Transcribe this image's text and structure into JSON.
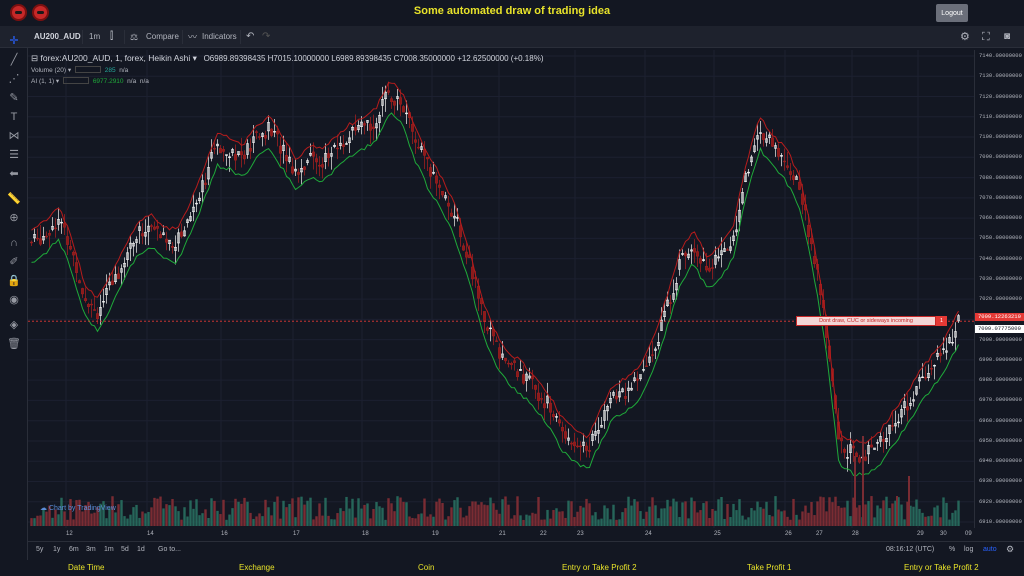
{
  "title_bar": {
    "title": "Some automated draw of trading idea",
    "logout_label": "Logout",
    "logo_icons": [
      "robot-icon",
      "robot-icon"
    ]
  },
  "toolbar": {
    "symbol": "AU200_AUD",
    "interval": "1m",
    "compare_label": "Compare",
    "indicators_label": "Indicators"
  },
  "legend": {
    "symbol_text": "forex:AU200_AUD, 1, forex, Heikin Ashi",
    "open": "O6989.89398435",
    "high": "H7015.10000000",
    "low": "L6989.89398435",
    "close": "C7008.35000000",
    "change": "+12.62500000 (+0.18%)",
    "volume_label": "Volume (20)",
    "volume_value": "285",
    "volume_ma": "n/a",
    "ai_label": "AI (1, 1)",
    "ai_value1": "6977.2910",
    "ai_value2": "n/a",
    "ai_value3": "n/a"
  },
  "watermark": "Chart by TradingView",
  "annotation": {
    "text": "Dont draw, CUC or sideways incoming",
    "badge": "1"
  },
  "price_axis": {
    "ticks": [
      "7140.00000000",
      "7130.00000000",
      "7120.00000000",
      "7110.00000000",
      "7100.00000000",
      "7090.00000000",
      "7080.00000000",
      "7070.00000000",
      "7060.00000000",
      "7050.00000000",
      "7040.00000000",
      "7030.00000000",
      "7020.00000000",
      "7010.00000000",
      "7000.00000000",
      "6990.00000000",
      "6980.00000000",
      "6970.00000000",
      "6960.00000000",
      "6950.00000000",
      "6940.00000000",
      "6930.00000000",
      "6920.00000000",
      "6910.00000000"
    ],
    "line_price": "7009.12263210",
    "last_price": "7009.07775000"
  },
  "time_axis": {
    "ticks": [
      "12",
      "14",
      "16",
      "17",
      "18",
      "19",
      "21",
      "22",
      "23",
      "24",
      "25",
      "26",
      "27",
      "28",
      "29",
      "30",
      "09"
    ]
  },
  "range_bar": {
    "ranges": [
      "5y",
      "1y",
      "6m",
      "3m",
      "1m",
      "5d",
      "1d"
    ],
    "goto_label": "Go to...",
    "clock": "08:16:12 (UTC)",
    "percent_label": "%",
    "log_label": "log",
    "auto_label": "auto"
  },
  "footer": {
    "labels": [
      "Date Time",
      "Exchange",
      "Coin",
      "Entry or Take Profit 2",
      "Take Profit 1",
      "Entry or Take Profit 2"
    ]
  },
  "colors": {
    "background": "#131722",
    "up_candle": "#ffffff",
    "down_candle": "#8b1a1a",
    "green_line": "#1faa3a",
    "red_line": "#b71c1c",
    "title_yellow": "#e8e32a",
    "vol_up": "#26665a",
    "vol_down": "#7a2c33"
  },
  "chart_data": {
    "type": "candlestick",
    "x_labels": [
      "12",
      "14",
      "16",
      "17",
      "18",
      "19",
      "21",
      "22",
      "23",
      "24",
      "25",
      "26",
      "27",
      "28",
      "29",
      "30",
      "09"
    ],
    "ylim": [
      6910,
      7140
    ],
    "close_path": [
      [
        0,
        7048
      ],
      [
        10,
        7052
      ],
      [
        20,
        7060
      ],
      [
        30,
        7045
      ],
      [
        40,
        7022
      ],
      [
        50,
        7014
      ],
      [
        60,
        7026
      ],
      [
        70,
        7040
      ],
      [
        80,
        7052
      ],
      [
        90,
        7056
      ],
      [
        100,
        7050
      ],
      [
        110,
        7048
      ],
      [
        120,
        7062
      ],
      [
        130,
        7078
      ],
      [
        140,
        7096
      ],
      [
        150,
        7094
      ],
      [
        160,
        7090
      ],
      [
        170,
        7100
      ],
      [
        180,
        7104
      ],
      [
        190,
        7094
      ],
      [
        200,
        7083
      ],
      [
        210,
        7090
      ],
      [
        220,
        7088
      ],
      [
        230,
        7094
      ],
      [
        240,
        7100
      ],
      [
        250,
        7104
      ],
      [
        260,
        7108
      ],
      [
        270,
        7122
      ],
      [
        280,
        7116
      ],
      [
        290,
        7098
      ],
      [
        300,
        7084
      ],
      [
        310,
        7074
      ],
      [
        320,
        7060
      ],
      [
        330,
        7040
      ],
      [
        340,
        7015
      ],
      [
        350,
        6998
      ],
      [
        360,
        6988
      ],
      [
        370,
        6983
      ],
      [
        380,
        6976
      ],
      [
        390,
        6968
      ],
      [
        400,
        6956
      ],
      [
        410,
        6950
      ],
      [
        420,
        6946
      ],
      [
        430,
        6960
      ],
      [
        440,
        6972
      ],
      [
        450,
        6975
      ],
      [
        460,
        6981
      ],
      [
        470,
        6995
      ],
      [
        480,
        7016
      ],
      [
        490,
        7038
      ],
      [
        500,
        7048
      ],
      [
        510,
        7035
      ],
      [
        520,
        7040
      ],
      [
        530,
        7050
      ],
      [
        540,
        7082
      ],
      [
        550,
        7104
      ],
      [
        560,
        7095
      ],
      [
        570,
        7088
      ],
      [
        580,
        7075
      ],
      [
        590,
        7045
      ],
      [
        600,
        7005
      ],
      [
        610,
        6948
      ],
      [
        620,
        6944
      ],
      [
        630,
        6943
      ],
      [
        640,
        6948
      ],
      [
        650,
        6958
      ],
      [
        660,
        6966
      ],
      [
        670,
        6978
      ],
      [
        680,
        6986
      ],
      [
        690,
        6995
      ],
      [
        700,
        7008
      ]
    ],
    "annotation_price": 7009.12,
    "last_price": 7009.08
  }
}
